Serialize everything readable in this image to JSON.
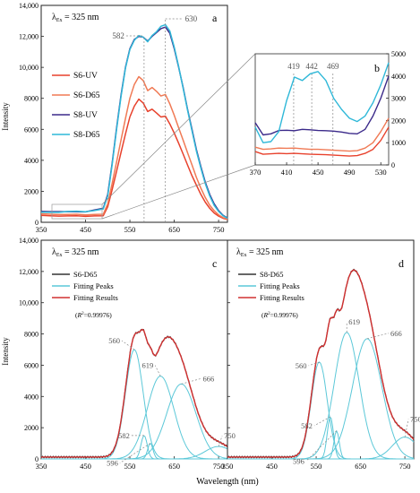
{
  "figure": {
    "y_axis_label": "Intensity",
    "x_axis_label": "Wavelength (nm)"
  },
  "chart_data": [
    {
      "panel": "a",
      "type": "line",
      "excitation": {
        "prefix": "λ",
        "sub": "Ex",
        "suffix": " = 325 nm"
      },
      "panel_label": "a",
      "ylabel": "Intensity",
      "xlim": [
        350,
        770
      ],
      "ylim": [
        0,
        14000
      ],
      "xticks": [
        350,
        450,
        550,
        650,
        750
      ],
      "yticks": [
        0,
        2000,
        4000,
        6000,
        8000,
        10000,
        12000,
        14000
      ],
      "ytick_labels": [
        "0",
        "2000",
        "4000",
        "6000",
        "8000",
        "10,000",
        "12,000",
        "14,000"
      ],
      "grid": false,
      "legend_position": "left",
      "annotations": [
        {
          "label": "582",
          "x": 582
        },
        {
          "label": "630",
          "x": 630
        }
      ],
      "series": [
        {
          "name": "S6-UV",
          "color": "#e8412c",
          "x": [
            350,
            370,
            390,
            410,
            430,
            450,
            470,
            490,
            500,
            510,
            520,
            530,
            540,
            550,
            560,
            570,
            580,
            590,
            600,
            610,
            620,
            630,
            640,
            650,
            660,
            670,
            680,
            690,
            700,
            710,
            720,
            730,
            740,
            750,
            760,
            770
          ],
          "y": [
            450,
            420,
            400,
            410,
            420,
            380,
            410,
            420,
            1000,
            2100,
            3300,
            4500,
            5700,
            6800,
            7500,
            7950,
            7700,
            7150,
            7300,
            7050,
            6800,
            6850,
            6350,
            5750,
            5100,
            4400,
            3700,
            3000,
            2400,
            1800,
            1300,
            900,
            600,
            400,
            260,
            180
          ]
        },
        {
          "name": "S6-D65",
          "color": "#f07a55",
          "x": [
            350,
            370,
            390,
            410,
            430,
            450,
            470,
            490,
            500,
            510,
            520,
            530,
            540,
            550,
            560,
            570,
            580,
            590,
            600,
            610,
            620,
            630,
            640,
            650,
            660,
            670,
            680,
            690,
            700,
            710,
            720,
            730,
            740,
            750,
            760,
            770
          ],
          "y": [
            550,
            520,
            500,
            510,
            520,
            480,
            510,
            520,
            1200,
            2500,
            3900,
            5300,
            6700,
            8000,
            8900,
            9400,
            9150,
            8500,
            8700,
            8450,
            8150,
            8250,
            7650,
            6900,
            6100,
            5300,
            4500,
            3700,
            2900,
            2200,
            1600,
            1100,
            750,
            480,
            300,
            200
          ]
        },
        {
          "name": "S8-UV",
          "color": "#3b2a8a",
          "x": [
            350,
            370,
            390,
            410,
            430,
            450,
            470,
            490,
            500,
            510,
            520,
            530,
            540,
            550,
            560,
            570,
            580,
            590,
            600,
            610,
            620,
            630,
            640,
            650,
            660,
            670,
            680,
            690,
            700,
            710,
            720,
            730,
            740,
            750,
            760,
            770
          ],
          "y": [
            700,
            690,
            690,
            690,
            680,
            670,
            800,
            900,
            1800,
            3800,
            6100,
            8200,
            10000,
            11200,
            11800,
            12000,
            11950,
            11700,
            12000,
            12250,
            12500,
            12600,
            12200,
            11200,
            10000,
            8700,
            7300,
            6000,
            4700,
            3600,
            2600,
            1800,
            1200,
            750,
            450,
            280
          ]
        },
        {
          "name": "S8-D65",
          "color": "#2fb8d8",
          "x": [
            350,
            370,
            390,
            410,
            430,
            450,
            470,
            490,
            500,
            510,
            520,
            530,
            540,
            550,
            560,
            570,
            580,
            590,
            600,
            610,
            620,
            630,
            640,
            650,
            660,
            670,
            680,
            690,
            700,
            710,
            720,
            730,
            740,
            750,
            760,
            770
          ],
          "y": [
            650,
            640,
            640,
            700,
            720,
            680,
            760,
            860,
            1700,
            3700,
            6000,
            8100,
            9950,
            11150,
            11750,
            12050,
            11950,
            11650,
            12050,
            12300,
            12650,
            12750,
            12350,
            11300,
            10050,
            8650,
            7250,
            5900,
            4600,
            3500,
            2500,
            1700,
            1100,
            700,
            420,
            260
          ]
        }
      ]
    },
    {
      "panel": "b",
      "type": "line",
      "panel_label": "b",
      "xlim": [
        370,
        540
      ],
      "ylim": [
        0,
        5000
      ],
      "xticks": [
        370,
        410,
        450,
        490,
        530
      ],
      "yticks": [
        0,
        1000,
        2000,
        3000,
        4000,
        5000
      ],
      "ytick_labels": [
        "0",
        "1000",
        "2000",
        "3000",
        "4000",
        "5000"
      ],
      "yaxis_side": "right",
      "annotations": [
        {
          "label": "419",
          "x": 419
        },
        {
          "label": "442",
          "x": 442
        },
        {
          "label": "469",
          "x": 469
        }
      ],
      "series": [
        {
          "name": "S6-UV",
          "color": "#e8412c",
          "x": [
            370,
            380,
            390,
            400,
            410,
            420,
            430,
            440,
            450,
            460,
            470,
            480,
            490,
            500,
            510,
            520,
            530,
            540
          ],
          "y": [
            600,
            480,
            500,
            520,
            510,
            520,
            500,
            480,
            470,
            460,
            440,
            420,
            400,
            420,
            520,
            700,
            1100,
            1700
          ]
        },
        {
          "name": "S6-D65",
          "color": "#f07a55",
          "x": [
            370,
            380,
            390,
            400,
            410,
            420,
            430,
            440,
            450,
            460,
            470,
            480,
            490,
            500,
            510,
            520,
            530,
            540
          ],
          "y": [
            800,
            700,
            720,
            760,
            750,
            760,
            730,
            700,
            700,
            680,
            660,
            640,
            620,
            640,
            760,
            1000,
            1500,
            2100
          ]
        },
        {
          "name": "S8-UV",
          "color": "#3b2a8a",
          "x": [
            370,
            380,
            390,
            400,
            410,
            420,
            430,
            440,
            450,
            460,
            470,
            480,
            490,
            500,
            510,
            520,
            530,
            540
          ],
          "y": [
            1900,
            1350,
            1400,
            1550,
            1560,
            1540,
            1600,
            1580,
            1550,
            1540,
            1520,
            1480,
            1420,
            1400,
            1600,
            2200,
            3000,
            4000
          ]
        },
        {
          "name": "S8-D65",
          "color": "#2fb8d8",
          "x": [
            370,
            380,
            390,
            400,
            410,
            420,
            430,
            440,
            450,
            460,
            470,
            480,
            490,
            500,
            510,
            520,
            530,
            540
          ],
          "y": [
            1700,
            1000,
            1050,
            1500,
            2900,
            3950,
            3800,
            4100,
            4200,
            3800,
            3000,
            2500,
            2100,
            1950,
            2200,
            2800,
            3600,
            4600
          ]
        }
      ]
    },
    {
      "panel": "c",
      "type": "line",
      "excitation": {
        "prefix": "λ",
        "sub": "Ex",
        "suffix": " = 325 nm"
      },
      "panel_label": "c",
      "ylabel": "Intensity",
      "xlim": [
        350,
        770
      ],
      "ylim": [
        0,
        14000
      ],
      "xticks": [
        350,
        450,
        550,
        650,
        750
      ],
      "yticks": [
        0,
        2000,
        4000,
        6000,
        8000,
        10000,
        12000,
        14000
      ],
      "ytick_labels": [
        "0",
        "2000",
        "4000",
        "6000",
        "8000",
        "10,000",
        "12,000",
        "14,000"
      ],
      "legend": [
        "S6-D65",
        "Fitting Peaks",
        "Fitting Results"
      ],
      "r2_note": {
        "pre": "(",
        "r": "R",
        "sup": "2",
        "post": "=0.99976)"
      },
      "peaks": [
        {
          "label": "560",
          "center": 560,
          "amplitude": 7000,
          "sigma": 20
        },
        {
          "label": "582",
          "center": 582,
          "amplitude": 1500,
          "sigma": 7
        },
        {
          "label": "596",
          "center": 596,
          "amplitude": 1000,
          "sigma": 6
        },
        {
          "label": "619",
          "center": 619,
          "amplitude": 5300,
          "sigma": 30
        },
        {
          "label": "666",
          "center": 666,
          "amplitude": 4800,
          "sigma": 33
        },
        {
          "label": "750",
          "center": 750,
          "amplitude": 800,
          "sigma": 30
        }
      ]
    },
    {
      "panel": "d",
      "type": "line",
      "excitation": {
        "prefix": "λ",
        "sub": "Ex",
        "suffix": " = 325 nm"
      },
      "panel_label": "d",
      "xlim": [
        350,
        770
      ],
      "ylim": [
        0,
        14000
      ],
      "xticks": [
        350,
        450,
        550,
        650,
        750
      ],
      "yticks": [
        0,
        2000,
        4000,
        6000,
        8000,
        10000,
        12000,
        14000
      ],
      "ytick_labels": [
        "0",
        "2000",
        "4000",
        "6000",
        "8000",
        "10,000",
        "12,000",
        "14,000"
      ],
      "legend": [
        "S8-D65",
        "Fitting Peaks",
        "Fitting Results"
      ],
      "r2_note": {
        "pre": "(",
        "r": "R",
        "sup": "2",
        "post": "=0.99976)"
      },
      "peaks": [
        {
          "label": "560",
          "center": 557,
          "amplitude": 6200,
          "sigma": 18
        },
        {
          "label": "582",
          "center": 582,
          "amplitude": 2700,
          "sigma": 7
        },
        {
          "label": "596",
          "center": 596,
          "amplitude": 1800,
          "sigma": 6
        },
        {
          "label": "619",
          "center": 619,
          "amplitude": 8100,
          "sigma": 28
        },
        {
          "label": "666",
          "center": 665,
          "amplitude": 7700,
          "sigma": 33
        },
        {
          "label": "750",
          "center": 750,
          "amplitude": 1400,
          "sigma": 28
        }
      ]
    }
  ],
  "colors": {
    "data_c": "#333333",
    "data_d": "#333333",
    "fit_result": "#d03030",
    "fit_peak": "#5cc8d8",
    "guide": "#888888",
    "axis": "#222222"
  }
}
